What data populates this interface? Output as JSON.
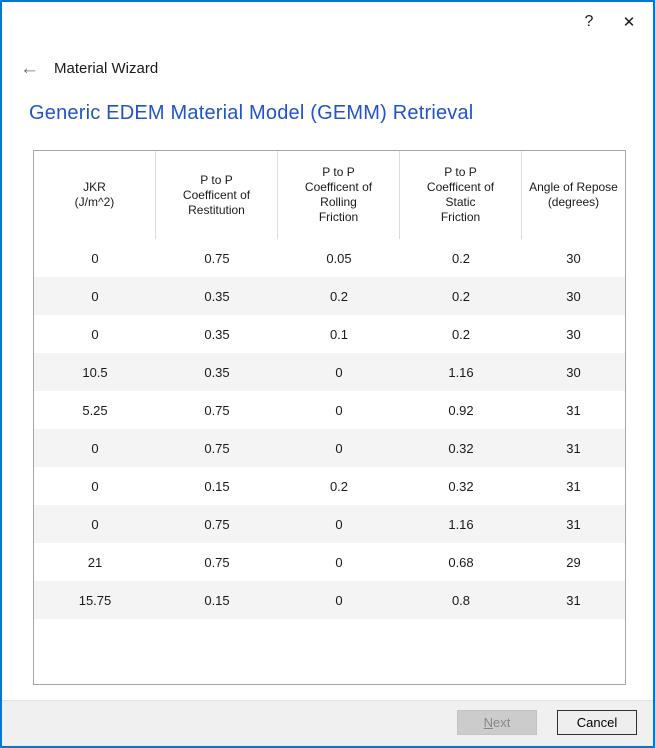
{
  "colors": {
    "accent_border": "#0078d7",
    "heading": "#2154c7",
    "row_alt": "#f4f4f4",
    "footer_bg": "#f0f0f0"
  },
  "titlebar": {
    "help_icon": "?",
    "close_icon": "✕"
  },
  "nav": {
    "back_icon": "←",
    "title": "Material Wizard"
  },
  "page": {
    "heading": "Generic EDEM Material Model (GEMM) Retrieval"
  },
  "table": {
    "columns": [
      {
        "label_lines": [
          "JKR",
          "(J/m^2)"
        ]
      },
      {
        "label_lines": [
          "P to P",
          "Coefficent of",
          "Restitution"
        ]
      },
      {
        "label_lines": [
          "P to P",
          "Coefficent of",
          "Rolling",
          "Friction"
        ]
      },
      {
        "label_lines": [
          "P to P",
          "Coefficent of",
          "Static",
          "Friction"
        ]
      },
      {
        "label_lines": [
          "Angle of Repose",
          "(degrees)"
        ]
      }
    ],
    "rows": [
      [
        "0",
        "0.75",
        "0.05",
        "0.2",
        "30"
      ],
      [
        "0",
        "0.35",
        "0.2",
        "0.2",
        "30"
      ],
      [
        "0",
        "0.35",
        "0.1",
        "0.2",
        "30"
      ],
      [
        "10.5",
        "0.35",
        "0",
        "1.16",
        "30"
      ],
      [
        "5.25",
        "0.75",
        "0",
        "0.92",
        "31"
      ],
      [
        "0",
        "0.75",
        "0",
        "0.32",
        "31"
      ],
      [
        "0",
        "0.15",
        "0.2",
        "0.32",
        "31"
      ],
      [
        "0",
        "0.75",
        "0",
        "1.16",
        "31"
      ],
      [
        "21",
        "0.75",
        "0",
        "0.68",
        "29"
      ],
      [
        "15.75",
        "0.15",
        "0",
        "0.8",
        "31"
      ]
    ]
  },
  "footer": {
    "next_label": "Next",
    "next_enabled": false,
    "cancel_label": "Cancel"
  }
}
